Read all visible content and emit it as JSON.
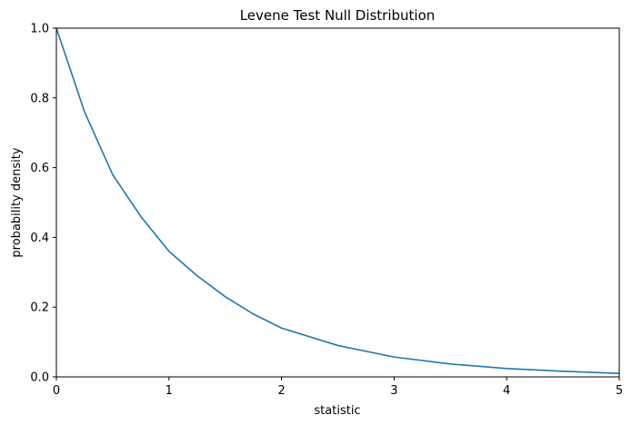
{
  "chart_data": {
    "type": "line",
    "title": "Levene Test Null Distribution",
    "xlabel": "statistic",
    "ylabel": "probability density",
    "xlim": [
      0,
      5
    ],
    "ylim": [
      0,
      1.0
    ],
    "x_ticks": [
      0,
      1,
      2,
      3,
      4,
      5
    ],
    "x_tick_labels": [
      "0",
      "1",
      "2",
      "3",
      "4",
      "5"
    ],
    "y_ticks": [
      0,
      0.2,
      0.4,
      0.6,
      0.8,
      1.0
    ],
    "y_tick_labels": [
      "0.0",
      "0.2",
      "0.4",
      "0.6",
      "0.8",
      "1.0"
    ],
    "grid": false,
    "series": [
      {
        "color": "#1f77b4",
        "x": [
          0,
          0.25,
          0.5,
          0.75,
          1.0,
          1.25,
          1.5,
          1.75,
          2.0,
          2.5,
          3.0,
          3.5,
          4.0,
          4.5,
          5.0
        ],
        "y": [
          1.0,
          0.76,
          0.58,
          0.46,
          0.36,
          0.29,
          0.23,
          0.18,
          0.14,
          0.09,
          0.057,
          0.037,
          0.024,
          0.016,
          0.01
        ]
      }
    ]
  }
}
